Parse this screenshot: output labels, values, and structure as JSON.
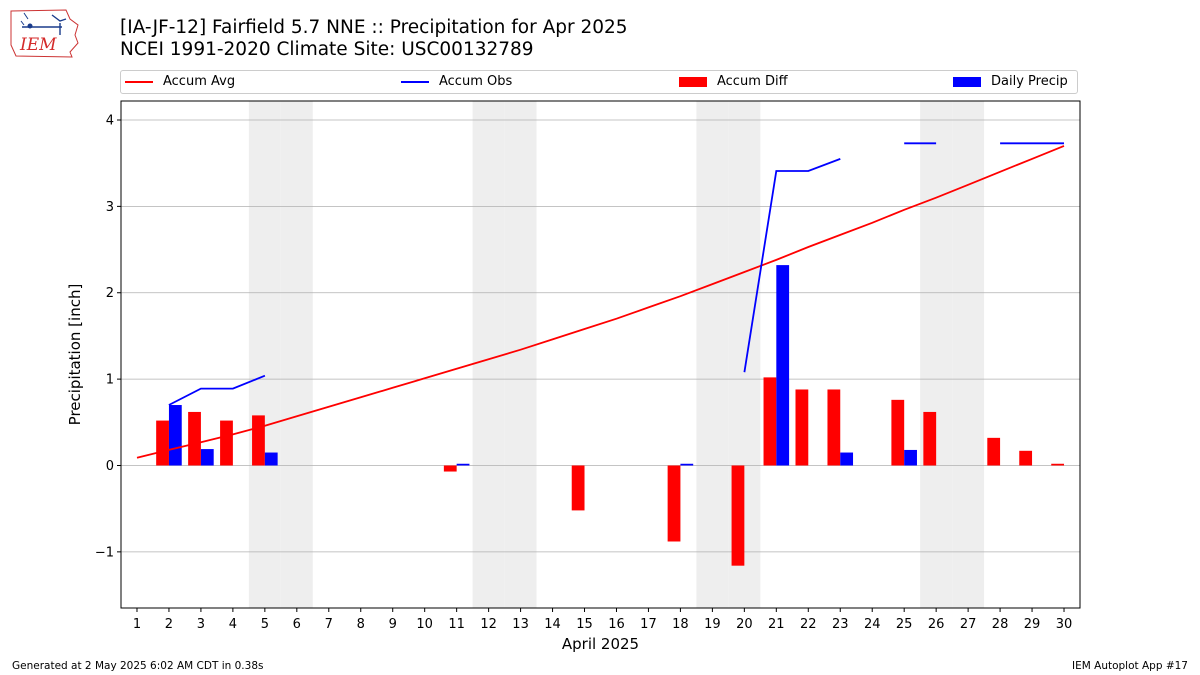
{
  "logo": {
    "text": "IEM"
  },
  "header": {
    "title_line1": "[IA-JF-12] Fairfield 5.7 NNE :: Precipitation for Apr 2025",
    "title_line2": "NCEI 1991-2020 Climate Site: USC00132789"
  },
  "footer": {
    "left": "Generated at 2 May 2025 6:02 AM CDT in 0.38s",
    "right": "IEM Autoplot App #17"
  },
  "colors": {
    "accum_avg": "#ff0000",
    "accum_obs": "#0000ff",
    "accum_diff": "#ff0000",
    "daily_precip": "#0000ff",
    "weekend_shade": "#eeeeee",
    "grid": "#b0b0b0"
  },
  "chart_data": {
    "type": "bar",
    "xlabel": "April 2025",
    "ylabel": "Precipitation [inch]",
    "xlim": [
      0.5,
      30.5
    ],
    "ylim": [
      -1.65,
      4.22
    ],
    "yticks": [
      -1,
      0,
      1,
      2,
      3,
      4
    ],
    "ytick_labels": [
      "−1",
      "0",
      "1",
      "2",
      "3",
      "4"
    ],
    "x": [
      1,
      2,
      3,
      4,
      5,
      6,
      7,
      8,
      9,
      10,
      11,
      12,
      13,
      14,
      15,
      16,
      17,
      18,
      19,
      20,
      21,
      22,
      23,
      24,
      25,
      26,
      27,
      28,
      29,
      30
    ],
    "x_tick_labels": [
      "1",
      "2",
      "3",
      "4",
      "5",
      "6",
      "7",
      "8",
      "9",
      "10",
      "11",
      "12",
      "13",
      "14",
      "15",
      "16",
      "17",
      "18",
      "19",
      "20",
      "21",
      "22",
      "23",
      "24",
      "25",
      "26",
      "27",
      "28",
      "29",
      "30"
    ],
    "grid": "y",
    "legend_position": "top",
    "shaded_days": [
      5,
      6,
      12,
      13,
      19,
      20,
      26,
      27
    ],
    "series": [
      {
        "name": "Accum Avg",
        "type": "line",
        "values": [
          0.09,
          0.18,
          0.27,
          0.36,
          0.46,
          0.57,
          0.68,
          0.79,
          0.9,
          1.01,
          1.12,
          1.23,
          1.34,
          1.46,
          1.58,
          1.7,
          1.83,
          1.96,
          2.1,
          2.24,
          2.38,
          2.53,
          2.67,
          2.81,
          2.96,
          3.1,
          3.25,
          3.4,
          3.55,
          3.7
        ]
      },
      {
        "name": "Accum Obs",
        "type": "line",
        "values": [
          null,
          0.7,
          0.89,
          0.89,
          1.04,
          null,
          null,
          null,
          null,
          null,
          null,
          null,
          null,
          null,
          null,
          null,
          null,
          null,
          null,
          1.08,
          3.41,
          3.41,
          3.55,
          null,
          3.73,
          3.73,
          null,
          3.73,
          3.73,
          3.73
        ]
      },
      {
        "name": "Accum Diff",
        "type": "bar",
        "values": [
          0,
          0.52,
          0.62,
          0.52,
          0.58,
          0,
          0,
          0,
          0,
          0,
          -0.07,
          0,
          0,
          0,
          -0.52,
          0,
          0,
          -0.88,
          0,
          -1.16,
          1.02,
          0.88,
          0.88,
          0,
          0.76,
          0.62,
          0,
          0.32,
          0.17,
          0.02
        ]
      },
      {
        "name": "Daily Precip",
        "type": "bar",
        "values": [
          0,
          0.7,
          0.19,
          0,
          0.15,
          0,
          0,
          0,
          0,
          0,
          0.02,
          0,
          0,
          0,
          0,
          0,
          0,
          0.02,
          0,
          0,
          2.32,
          0,
          0.15,
          0,
          0.18,
          0,
          0,
          0,
          0,
          0
        ]
      }
    ]
  }
}
